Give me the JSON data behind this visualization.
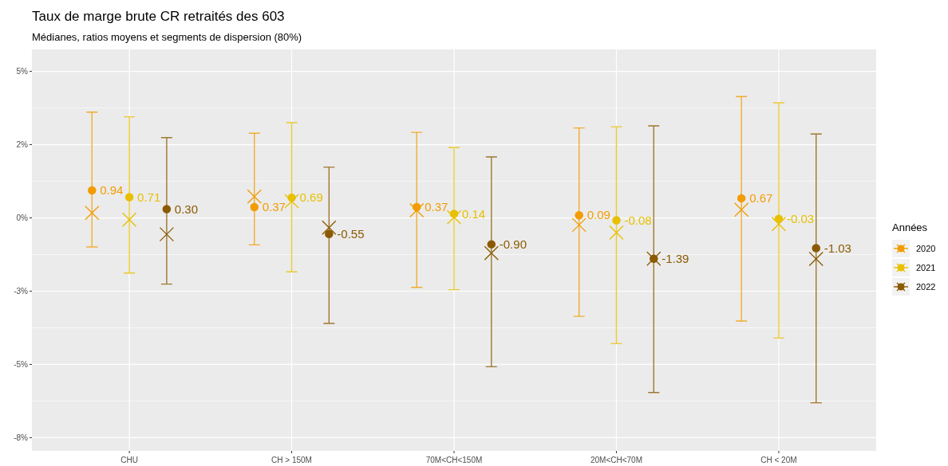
{
  "chart_data": {
    "type": "scatter",
    "title": "Taux de marge brute CR retraités des 603",
    "subtitle": "Médianes, ratios moyens et segments de dispersion (80%)",
    "legend_title": "Années",
    "categories": [
      "CHU",
      "CH > 150M",
      "70M<CH<150M",
      "20M<CH<70M",
      "CH < 20M"
    ],
    "ylim": [
      -7.95,
      5.75
    ],
    "yticks": [
      {
        "value": 5,
        "label": "5%"
      },
      {
        "value": 2.5,
        "label": "2%"
      },
      {
        "value": 0,
        "label": "0%"
      },
      {
        "value": -2.5,
        "label": "-3%"
      },
      {
        "value": -5,
        "label": "-5%"
      },
      {
        "value": -7.5,
        "label": "-8%"
      }
    ],
    "grid": true,
    "legend": "right",
    "series": [
      {
        "name": "2020",
        "color": "#f29c00",
        "marker": "circle",
        "values": [
          0.94,
          0.37,
          0.37,
          0.09,
          0.67
        ],
        "errors": [
          [
            -0.99,
            3.61
          ],
          [
            -0.92,
            2.89
          ],
          [
            -2.37,
            2.92
          ],
          [
            -3.36,
            3.07
          ],
          [
            -3.52,
            4.14
          ]
        ],
        "value_labels": [
          "0.94",
          "0.37",
          "0.37",
          "0.09",
          "0.67"
        ]
      },
      {
        "name": "2021",
        "color": "#e8c000",
        "marker": "circle",
        "values": [
          0.71,
          0.69,
          0.14,
          -0.08,
          -0.03
        ],
        "errors": [
          [
            -1.88,
            3.45
          ],
          [
            -1.84,
            3.25
          ],
          [
            -2.45,
            2.4
          ],
          [
            -4.29,
            3.11
          ],
          [
            -4.1,
            3.93
          ]
        ],
        "value_labels": [
          "0.71",
          "0.69",
          "0.14",
          "-0.08",
          "-0.03"
        ]
      },
      {
        "name": "2022",
        "color": "#8b5a00",
        "marker": "circle",
        "values": [
          0.3,
          -0.55,
          -0.9,
          -1.39,
          -1.03
        ],
        "errors": [
          [
            -2.26,
            2.74
          ],
          [
            -3.6,
            1.73
          ],
          [
            -5.08,
            2.08
          ],
          [
            -5.96,
            3.14
          ],
          [
            -6.31,
            2.86
          ]
        ],
        "value_labels": [
          "0.30",
          "-0.55",
          "-0.90",
          "-1.39",
          "-1.03"
        ]
      },
      {
        "color": "#f29c00",
        "marker": "cross",
        "values": [
          0.17,
          0.73,
          0.26,
          -0.24,
          0.28
        ]
      },
      {
        "color": "#e8c000",
        "marker": "cross",
        "values": [
          -0.06,
          0.57,
          0.02,
          -0.5,
          -0.21
        ]
      },
      {
        "color": "#8b5a00",
        "marker": "cross",
        "values": [
          -0.56,
          -0.33,
          -1.2,
          -1.39,
          -1.4
        ]
      }
    ]
  }
}
